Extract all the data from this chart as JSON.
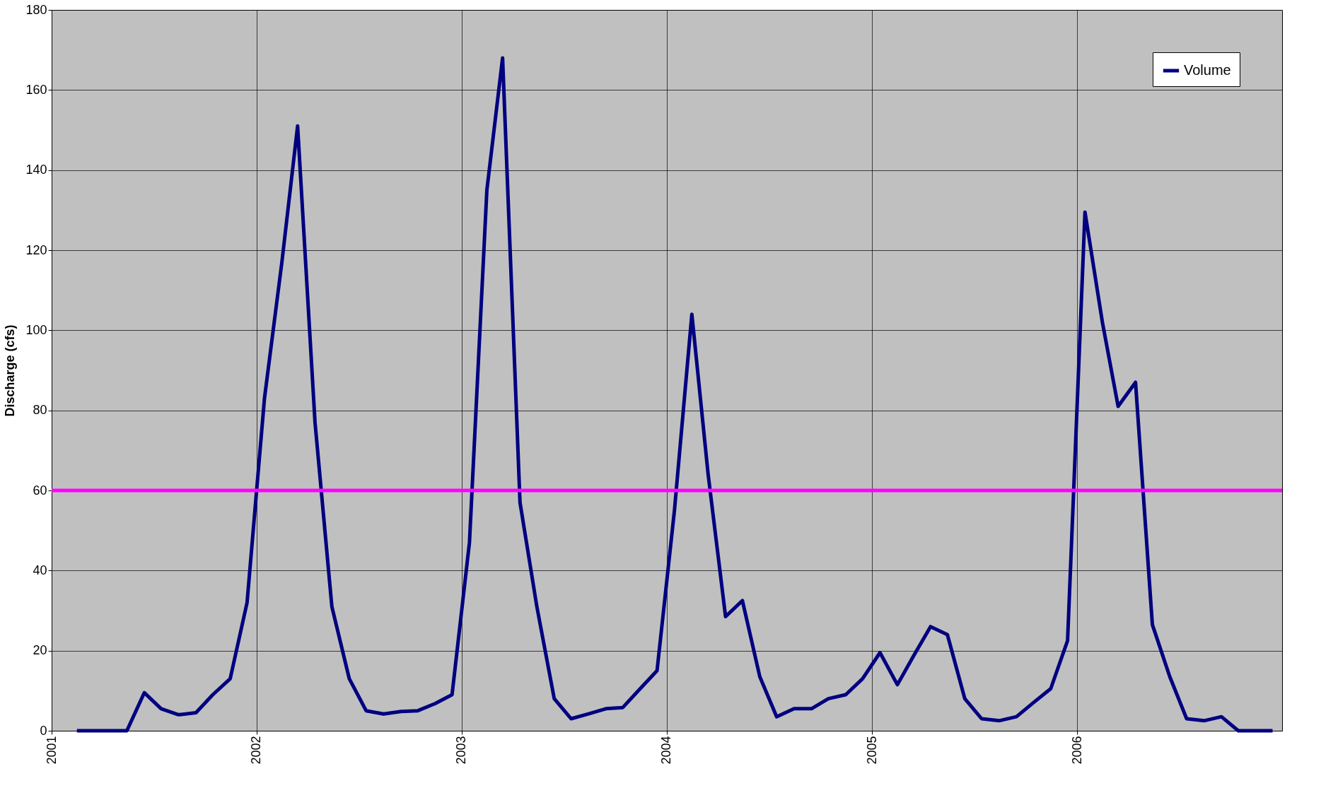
{
  "chart_data": {
    "type": "line",
    "ylabel": "Discharge (cfs)",
    "x": [
      "2001-02-15",
      "2001-03-15",
      "2001-04-15",
      "2001-05-15",
      "2001-06-15",
      "2001-07-15",
      "2001-08-15",
      "2001-09-15",
      "2001-10-15",
      "2001-11-15",
      "2001-12-15",
      "2002-01-15",
      "2002-02-15",
      "2002-03-15",
      "2002-04-15",
      "2002-05-15",
      "2002-06-15",
      "2002-07-15",
      "2002-08-15",
      "2002-09-15",
      "2002-10-15",
      "2002-11-15",
      "2002-12-15",
      "2003-01-15",
      "2003-02-15",
      "2003-03-15",
      "2003-04-15",
      "2003-05-15",
      "2003-06-15",
      "2003-07-15",
      "2003-08-15",
      "2003-09-15",
      "2003-10-15",
      "2003-11-15",
      "2003-12-15",
      "2004-01-15",
      "2004-02-15",
      "2004-03-15",
      "2004-04-15",
      "2004-05-15",
      "2004-06-15",
      "2004-07-15",
      "2004-08-15",
      "2004-09-15",
      "2004-10-15",
      "2004-11-15",
      "2004-12-15",
      "2005-01-15",
      "2005-02-15",
      "2005-03-15",
      "2005-04-15",
      "2005-05-15",
      "2005-06-15",
      "2005-07-15",
      "2005-08-15",
      "2005-09-15",
      "2005-10-15",
      "2005-11-15",
      "2005-12-15",
      "2006-01-15",
      "2006-02-15",
      "2006-03-15",
      "2006-04-15",
      "2006-05-15",
      "2006-06-15",
      "2006-07-15",
      "2006-08-15",
      "2006-09-15",
      "2006-10-15",
      "2006-11-15",
      "2006-12-15"
    ],
    "series": [
      {
        "name": "Volume",
        "color": "#000080",
        "values": [
          0,
          0,
          0,
          0,
          9.5,
          5.5,
          4,
          4.5,
          9,
          13,
          32,
          83,
          117,
          151,
          77,
          31,
          13,
          5,
          4.2,
          4.8,
          5,
          6.8,
          9,
          47,
          135,
          168,
          57,
          31,
          8,
          3,
          4.2,
          5.5,
          5.8,
          10.5,
          15,
          55,
          104,
          64,
          28.5,
          32.5,
          13.5,
          3.5,
          5.5,
          5.5,
          8,
          9,
          13,
          19.5,
          11.5,
          18.5,
          26,
          24,
          8,
          3,
          2.5,
          3.5,
          7,
          10.5,
          22.5,
          129.5,
          102,
          81,
          87,
          26.5,
          13.5,
          3,
          2.5,
          3.5,
          0,
          0,
          0
        ]
      }
    ],
    "ref_lines": [
      {
        "axis": "y",
        "value": 60,
        "color": "#ff00ff"
      }
    ],
    "xlim": [
      "2001",
      "2007"
    ],
    "xticks": [
      "2001",
      "2002",
      "2003",
      "2004",
      "2005",
      "2006"
    ],
    "ylim": [
      0,
      180
    ],
    "yticks": [
      0,
      20,
      40,
      60,
      80,
      100,
      120,
      140,
      160,
      180
    ],
    "grid": true,
    "legend": "top right",
    "line_style": "solid",
    "marker": "none"
  }
}
